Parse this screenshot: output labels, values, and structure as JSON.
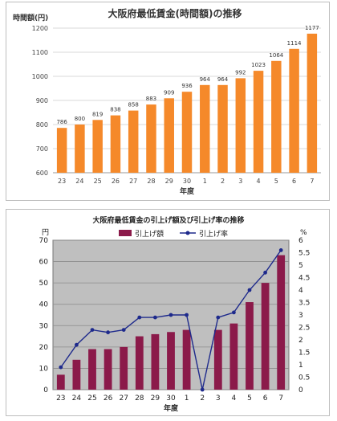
{
  "chart_data": [
    {
      "type": "bar",
      "title": "大阪府最低賃金(時間額)の推移",
      "ylabel": "時間額(円)",
      "xlabel": "年度",
      "categories": [
        "23",
        "24",
        "25",
        "26",
        "27",
        "28",
        "29",
        "30",
        "1",
        "2",
        "3",
        "4",
        "5",
        "6",
        "7"
      ],
      "values": [
        786,
        800,
        819,
        838,
        858,
        883,
        909,
        936,
        964,
        964,
        992,
        1023,
        1064,
        1114,
        1177
      ],
      "ylim": [
        600,
        1200
      ],
      "yticks": [
        "600",
        "700",
        "800",
        "900",
        "1000",
        "1100",
        "1200"
      ],
      "grid": true,
      "bar_color": "#f5892a"
    },
    {
      "type": "bar",
      "title": "大阪府最低賃金の引上げ額及び引上げ率の推移",
      "ylabel_left": "円",
      "ylabel_right": "%",
      "xlabel": "年度",
      "categories": [
        "23",
        "24",
        "25",
        "26",
        "27",
        "28",
        "29",
        "30",
        "1",
        "2",
        "3",
        "4",
        "5",
        "6",
        "7"
      ],
      "legend_position": "top",
      "series": [
        {
          "name": "引上げ額",
          "type": "bar",
          "axis": "left",
          "color": "#8b1a4a",
          "values": [
            7,
            14,
            19,
            19,
            20,
            25,
            26,
            27,
            28,
            0,
            28,
            31,
            41,
            50,
            63
          ]
        },
        {
          "name": "引上げ率",
          "type": "line",
          "axis": "right",
          "color": "#1e2a8c",
          "values": [
            0.9,
            1.8,
            2.4,
            2.3,
            2.4,
            2.9,
            2.9,
            3.0,
            3.0,
            0.0,
            2.9,
            3.1,
            4.0,
            4.7,
            5.6
          ]
        }
      ],
      "ylim_left": [
        0,
        70
      ],
      "ylim_right": [
        0,
        6
      ],
      "yticks_left": [
        "0",
        "10",
        "20",
        "30",
        "40",
        "50",
        "60",
        "70"
      ],
      "yticks_right": [
        "0",
        "0.5",
        "1",
        "1.5",
        "2",
        "2.5",
        "3",
        "3.5",
        "4",
        "4.5",
        "5",
        "5.5",
        "6"
      ],
      "grid": true,
      "plot_background": "#bfbfbf"
    }
  ]
}
